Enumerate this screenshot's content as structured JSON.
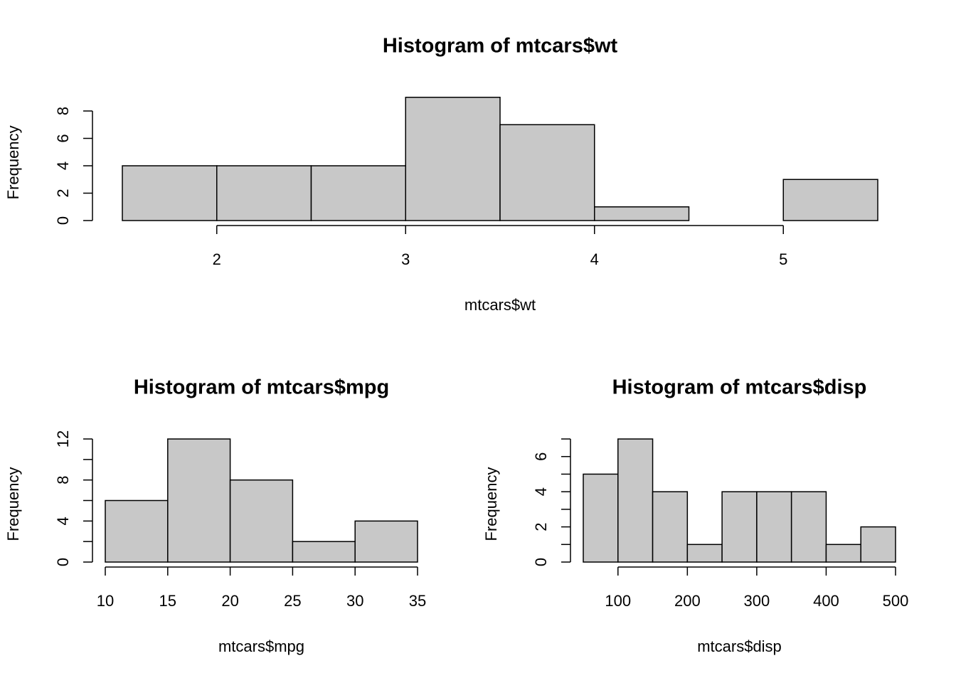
{
  "chart_data": [
    {
      "type": "histogram",
      "title": "Histogram of mtcars$wt",
      "xlabel": "mtcars$wt",
      "ylabel": "Frequency",
      "bins": [
        1.5,
        2,
        2.5,
        3,
        3.5,
        4,
        4.5,
        5,
        5.5
      ],
      "values": [
        4,
        4,
        4,
        9,
        7,
        1,
        0,
        3
      ],
      "color": "#c8c8c8",
      "xlim": [
        1.5,
        5.5
      ],
      "xticks": [
        2,
        3,
        4,
        5
      ],
      "ylim": [
        0,
        9
      ],
      "yticks": [
        0,
        2,
        4,
        6,
        8
      ]
    },
    {
      "type": "histogram",
      "title": "Histogram of mtcars$mpg",
      "xlabel": "mtcars$mpg",
      "ylabel": "Frequency",
      "bins": [
        10,
        15,
        20,
        25,
        30,
        35
      ],
      "values": [
        6,
        12,
        8,
        2,
        4
      ],
      "color": "#c8c8c8",
      "xlim": [
        10,
        35
      ],
      "xticks": [
        10,
        15,
        20,
        25,
        30,
        35
      ],
      "ylim": [
        0,
        12
      ],
      "yticks": [
        0,
        4,
        8,
        12
      ],
      "yminor_ticks": [
        2,
        6,
        10
      ]
    },
    {
      "type": "histogram",
      "title": "Histogram of mtcars$disp",
      "xlabel": "mtcars$disp",
      "ylabel": "Frequency",
      "bins": [
        50,
        100,
        150,
        200,
        250,
        300,
        350,
        400,
        450,
        500
      ],
      "values": [
        5,
        7,
        4,
        1,
        4,
        4,
        4,
        1,
        2
      ],
      "color": "#c8c8c8",
      "xlim": [
        50,
        500
      ],
      "xticks": [
        100,
        200,
        300,
        400,
        500
      ],
      "ylim": [
        0,
        7
      ],
      "yticks": [
        0,
        2,
        4,
        6
      ],
      "yminor_ticks": [
        1,
        3,
        5,
        7
      ]
    }
  ]
}
